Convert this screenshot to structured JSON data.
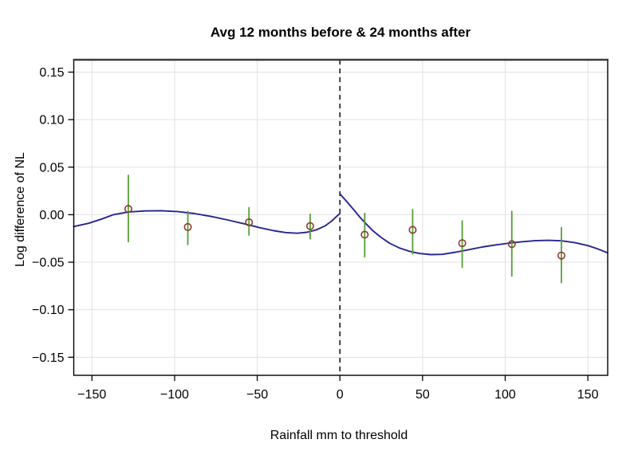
{
  "chart_data": {
    "type": "scatter",
    "title": "Avg 12 months before & 24 months after",
    "xlabel": "Rainfall mm to threshold",
    "ylabel": "Log difference of NL",
    "xlim": [
      -161,
      162
    ],
    "ylim": [
      -0.169,
      0.163
    ],
    "grid": true,
    "legend": "none",
    "threshold_line_x": 0,
    "xticks": [
      {
        "v": -150,
        "label": "−150"
      },
      {
        "v": -100,
        "label": "−100"
      },
      {
        "v": -50,
        "label": "−50"
      },
      {
        "v": 0,
        "label": "0"
      },
      {
        "v": 50,
        "label": "50"
      },
      {
        "v": 100,
        "label": "100"
      },
      {
        "v": 150,
        "label": "150"
      }
    ],
    "yticks": [
      {
        "v": 0.15,
        "label": "0.15"
      },
      {
        "v": 0.1,
        "label": "0.10"
      },
      {
        "v": 0.05,
        "label": "0.05"
      },
      {
        "v": 0.0,
        "label": "0.00"
      },
      {
        "v": -0.05,
        "label": "−0.05"
      },
      {
        "v": -0.1,
        "label": "−0.10"
      },
      {
        "v": -0.15,
        "label": "−0.15"
      }
    ],
    "points": [
      {
        "x": -128,
        "y": 0.006,
        "ci_low": -0.029,
        "ci_high": 0.042
      },
      {
        "x": -92,
        "y": -0.013,
        "ci_low": -0.032,
        "ci_high": 0.004
      },
      {
        "x": -55,
        "y": -0.008,
        "ci_low": -0.022,
        "ci_high": 0.008
      },
      {
        "x": -18,
        "y": -0.012,
        "ci_low": -0.026,
        "ci_high": 0.001
      },
      {
        "x": 15,
        "y": -0.021,
        "ci_low": -0.045,
        "ci_high": 0.002
      },
      {
        "x": 44,
        "y": -0.016,
        "ci_low": -0.042,
        "ci_high": 0.006
      },
      {
        "x": 74,
        "y": -0.03,
        "ci_low": -0.056,
        "ci_high": -0.006
      },
      {
        "x": 104,
        "y": -0.031,
        "ci_low": -0.065,
        "ci_high": 0.004
      },
      {
        "x": 134,
        "y": -0.043,
        "ci_low": -0.072,
        "ci_high": -0.013
      }
    ],
    "fit_left": [
      [
        -161,
        -0.0125
      ],
      [
        -152,
        -0.009
      ],
      [
        -144,
        -0.0045
      ],
      [
        -137,
        0.0
      ],
      [
        -128,
        0.0028
      ],
      [
        -118,
        0.004
      ],
      [
        -108,
        0.0042
      ],
      [
        -98,
        0.0032
      ],
      [
        -88,
        0.0012
      ],
      [
        -78,
        -0.0018
      ],
      [
        -68,
        -0.0055
      ],
      [
        -58,
        -0.0095
      ],
      [
        -48,
        -0.0138
      ],
      [
        -40,
        -0.0168
      ],
      [
        -33,
        -0.0188
      ],
      [
        -26,
        -0.0195
      ],
      [
        -20,
        -0.0185
      ],
      [
        -14,
        -0.0158
      ],
      [
        -9,
        -0.0118
      ],
      [
        -5,
        -0.0068
      ],
      [
        -2,
        -0.0018
      ],
      [
        0,
        0.0013
      ]
    ],
    "fit_right": [
      [
        0,
        0.022
      ],
      [
        3,
        0.016
      ],
      [
        6,
        0.01
      ],
      [
        9,
        0.004
      ],
      [
        12,
        -0.0025
      ],
      [
        16,
        -0.01
      ],
      [
        20,
        -0.017
      ],
      [
        25,
        -0.024
      ],
      [
        30,
        -0.03
      ],
      [
        36,
        -0.035
      ],
      [
        42,
        -0.0385
      ],
      [
        48,
        -0.0408
      ],
      [
        55,
        -0.042
      ],
      [
        62,
        -0.0417
      ],
      [
        70,
        -0.0395
      ],
      [
        78,
        -0.0368
      ],
      [
        86,
        -0.034
      ],
      [
        94,
        -0.0318
      ],
      [
        102,
        -0.03
      ],
      [
        110,
        -0.0285
      ],
      [
        118,
        -0.0274
      ],
      [
        126,
        -0.027
      ],
      [
        134,
        -0.0275
      ],
      [
        142,
        -0.0293
      ],
      [
        150,
        -0.0325
      ],
      [
        156,
        -0.036
      ],
      [
        162,
        -0.0402
      ]
    ],
    "colors": {
      "curve": "#26268e",
      "error_bar": "#55a035",
      "point_stroke": "#8b3a2e",
      "grid": "#e0e0e0",
      "axis": "#000000",
      "threshold": "#1a1a1a",
      "background": "#ffffff"
    }
  }
}
